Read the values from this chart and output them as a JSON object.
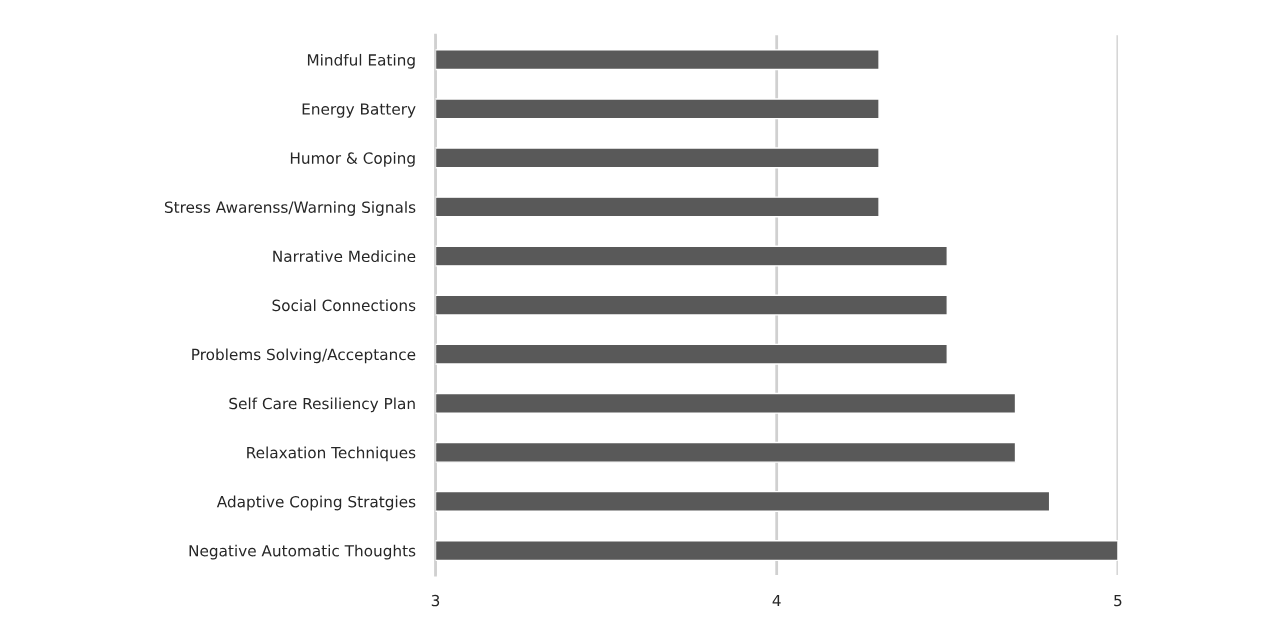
{
  "chart_data": {
    "type": "bar",
    "orientation": "horizontal",
    "categories": [
      "Mindful Eating",
      "Energy Battery",
      "Humor & Coping",
      "Stress Awarenss/Warning Signals",
      "Narrative Medicine",
      "Social Connections",
      "Problems Solving/Acceptance",
      "Self Care Resiliency Plan",
      "Relaxation Techniques",
      "Adaptive Coping Stratgies",
      "Negative Automatic Thoughts"
    ],
    "values": [
      4.3,
      4.3,
      4.3,
      4.3,
      4.5,
      4.5,
      4.5,
      4.7,
      4.7,
      4.8,
      5.0
    ],
    "color": "#595959",
    "xlim": [
      3,
      5
    ],
    "xticks": [
      3,
      4,
      5
    ],
    "grid": "x"
  }
}
